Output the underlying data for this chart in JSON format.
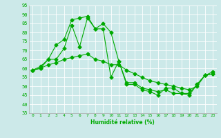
{
  "xlabel": "Humidité relative (%)",
  "xlim": [
    -0.5,
    23.5
  ],
  "ylim": [
    35,
    95
  ],
  "yticks": [
    35,
    40,
    45,
    50,
    55,
    60,
    65,
    70,
    75,
    80,
    85,
    90,
    95
  ],
  "xticks": [
    0,
    1,
    2,
    3,
    4,
    5,
    6,
    7,
    8,
    9,
    10,
    11,
    12,
    13,
    14,
    15,
    16,
    17,
    18,
    19,
    20,
    21,
    22,
    23
  ],
  "bg_color": "#cce9e9",
  "grid_color": "#ffffff",
  "line_color": "#00aa00",
  "line1_y": [
    59,
    61,
    65,
    73,
    76,
    87,
    88,
    89,
    82,
    85,
    80,
    64,
    51,
    51,
    48,
    47,
    45,
    49,
    49,
    46,
    45,
    51,
    56,
    58
  ],
  "line2_y": [
    59,
    60,
    65,
    65,
    71,
    84,
    72,
    88,
    82,
    82,
    55,
    64,
    52,
    52,
    49,
    48,
    47,
    48,
    46,
    46,
    46,
    51,
    56,
    57
  ],
  "line3_y": [
    59,
    60,
    62,
    63,
    65,
    66,
    67,
    68,
    65,
    64,
    62,
    62,
    59,
    57,
    55,
    53,
    52,
    51,
    50,
    49,
    48,
    50,
    56,
    57
  ]
}
